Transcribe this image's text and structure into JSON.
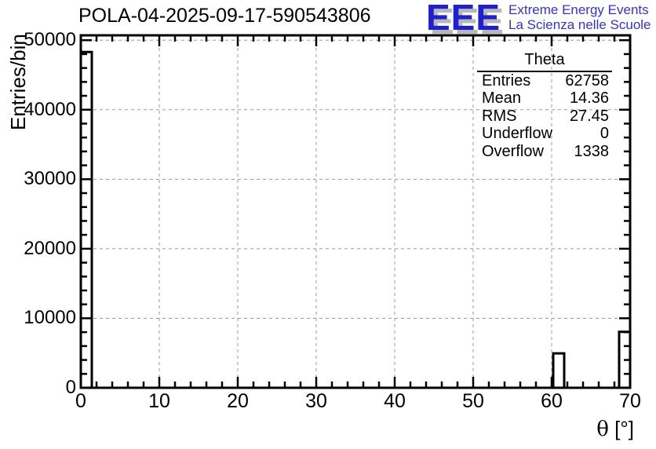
{
  "title": "POLA-04-2025-09-17-590543806",
  "logo": {
    "acronym": "EEE",
    "line1": "Extreme Energy Events",
    "line2": "La Scienza nelle Scuole",
    "accent_blue": "#1e1ed2",
    "text_blue": "#3333d6",
    "shadow_gray": "#b8b8b8"
  },
  "stats": {
    "title": "Theta",
    "rows": [
      {
        "label": "Entries",
        "value": "62758"
      },
      {
        "label": "Mean",
        "value": "14.36"
      },
      {
        "label": "RMS",
        "value": "27.45"
      },
      {
        "label": "Underflow",
        "value": "0"
      },
      {
        "label": "Overflow",
        "value": "1338"
      }
    ]
  },
  "chart_data": {
    "type": "bar",
    "title": "POLA-04-2025-09-17-590543806",
    "xlabel": "θ [°]",
    "xlabel_symbol": "θ",
    "xlabel_unit": "[°]",
    "ylabel": "Entries/bin",
    "xlim": [
      0,
      70
    ],
    "ylim": [
      0,
      50700
    ],
    "xticks": [
      0,
      10,
      20,
      30,
      40,
      50,
      60,
      70
    ],
    "yticks": [
      0,
      10000,
      20000,
      30000,
      40000,
      50000
    ],
    "x_minor_step": 2,
    "y_minor_step": 2000,
    "grid": true,
    "grid_color": "#999999",
    "line_color": "#000000",
    "bar_fill": "#ffffff",
    "legend_position": "none",
    "bars": [
      {
        "x0": 0.0,
        "x1": 1.4,
        "value": 48300
      },
      {
        "x0": 60.2,
        "x1": 61.6,
        "value": 4950
      },
      {
        "x0": 68.6,
        "x1": 70.0,
        "value": 8050
      }
    ],
    "stats": {
      "entries": 62758,
      "mean": 14.36,
      "rms": 27.45,
      "underflow": 0,
      "overflow": 1338
    }
  }
}
